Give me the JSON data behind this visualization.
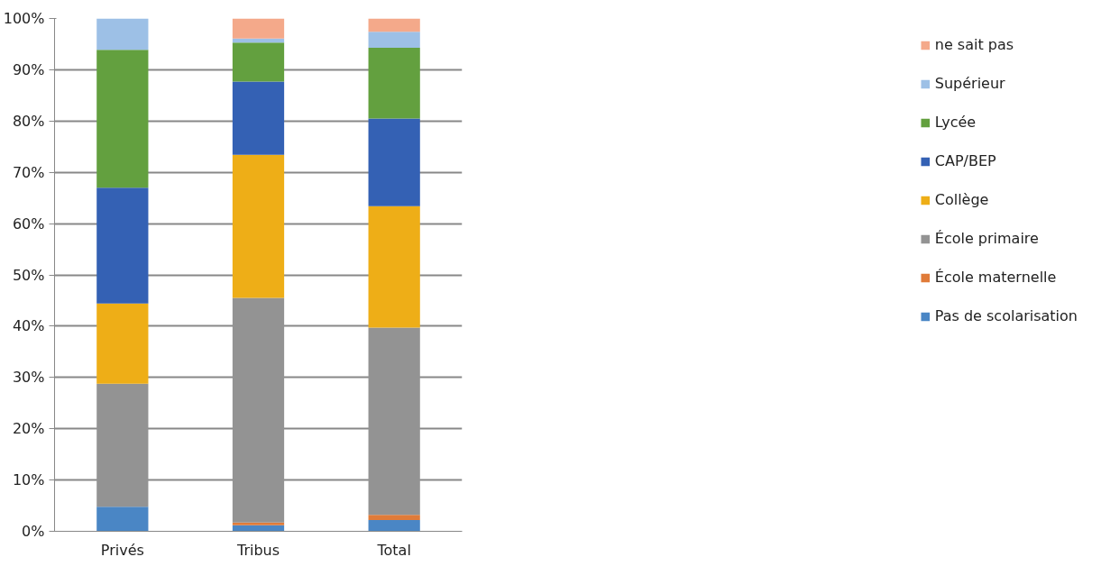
{
  "chart_data": {
    "type": "bar",
    "stacked": true,
    "categories": [
      "Privés",
      "Tribus",
      "Total"
    ],
    "series": [
      {
        "name": "Pas de scolarisation",
        "color": "#4a86c5",
        "values": [
          4.8,
          1.2,
          2.2
        ]
      },
      {
        "name": "École maternelle",
        "color": "#e07b39",
        "values": [
          0,
          0.5,
          1.0
        ]
      },
      {
        "name": "École primaire",
        "color": "#939393",
        "values": [
          24.0,
          43.8,
          36.5
        ]
      },
      {
        "name": "Collège",
        "color": "#eeae17",
        "values": [
          15.6,
          27.9,
          23.7
        ]
      },
      {
        "name": "CAP/BEP",
        "color": "#3461b4",
        "values": [
          22.6,
          14.3,
          17.1
        ]
      },
      {
        "name": "Lycée",
        "color": "#63a03f",
        "values": [
          26.9,
          7.6,
          13.8
        ]
      },
      {
        "name": "Supérieur",
        "color": "#9dc0e6",
        "values": [
          6.1,
          0.8,
          3.1
        ]
      },
      {
        "name": "ne sait pas",
        "color": "#f4a98a",
        "values": [
          0,
          3.9,
          2.6
        ]
      }
    ],
    "ylim": [
      0,
      100
    ],
    "yticks": [
      {
        "value": 0,
        "label": "0%"
      },
      {
        "value": 10,
        "label": "10%"
      },
      {
        "value": 20,
        "label": "20%"
      },
      {
        "value": 30,
        "label": "30%"
      },
      {
        "value": 40,
        "label": "40%"
      },
      {
        "value": 50,
        "label": "50%"
      },
      {
        "value": 60,
        "label": "60%"
      },
      {
        "value": 70,
        "label": "70%"
      },
      {
        "value": 80,
        "label": "80%"
      },
      {
        "value": 90,
        "label": "90%"
      },
      {
        "value": 100,
        "label": "100%"
      }
    ],
    "grid": "y",
    "legend": "right"
  }
}
